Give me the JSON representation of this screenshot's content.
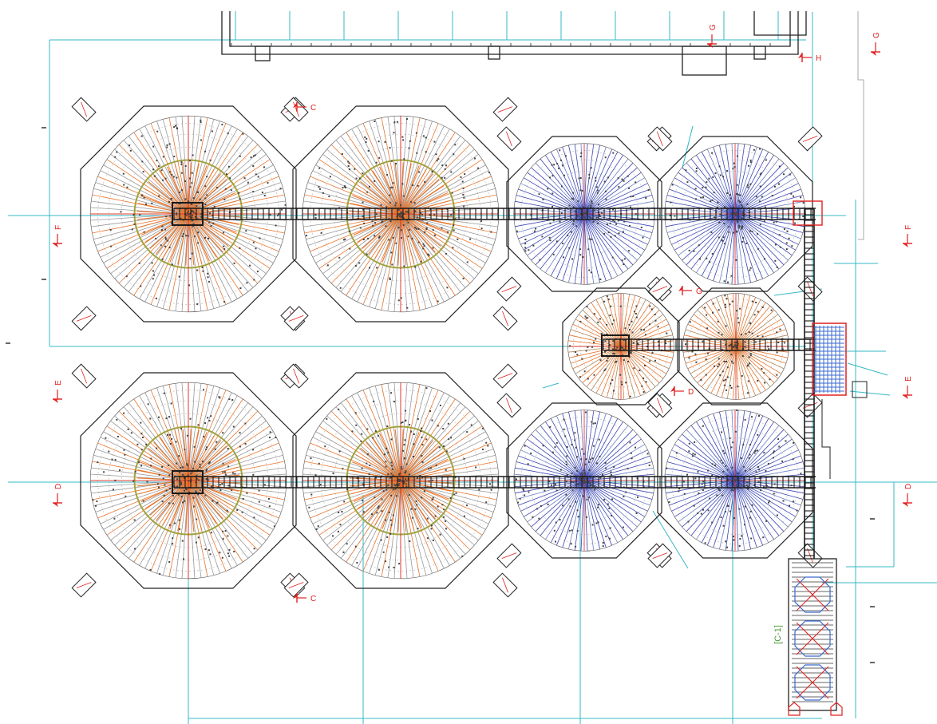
{
  "colors": {
    "dimension": "#35b8c6",
    "outline": "#222222",
    "grey_radial": "#9a9a9a",
    "orange_radial": "#e8772e",
    "blue_radial": "#3a45b5",
    "ring": "#a2a23c",
    "red": "#e02020",
    "beam": "#1a1a1a",
    "duct": "#3a6ad0",
    "green_label": "#4a9a3a"
  },
  "section_markers": [
    {
      "id": "sec-c-top",
      "letter": "C"
    },
    {
      "id": "sec-c-bottom",
      "letter": "C"
    },
    {
      "id": "sec-f-left",
      "letter": "F"
    },
    {
      "id": "sec-e-left",
      "letter": "E"
    },
    {
      "id": "sec-d-left",
      "letter": "D"
    },
    {
      "id": "sec-f-right",
      "letter": "F"
    },
    {
      "id": "sec-e-right",
      "letter": "E"
    },
    {
      "id": "sec-d-right",
      "letter": "D"
    },
    {
      "id": "sec-g-top",
      "letter": "G"
    },
    {
      "id": "sec-g-right",
      "letter": "G"
    },
    {
      "id": "sec-h-top",
      "letter": "H"
    },
    {
      "id": "sec-g-mid",
      "letter": "G"
    },
    {
      "id": "sec-d-mid",
      "letter": "D"
    }
  ],
  "tanks": [
    {
      "id": "tank-large-1",
      "scheme": "grey-orange"
    },
    {
      "id": "tank-large-2",
      "scheme": "grey-orange"
    },
    {
      "id": "tank-medium-1",
      "scheme": "blue"
    },
    {
      "id": "tank-medium-2",
      "scheme": "blue"
    },
    {
      "id": "tank-small-1",
      "scheme": "orange"
    },
    {
      "id": "tank-small-2",
      "scheme": "orange"
    },
    {
      "id": "tank-large-3",
      "scheme": "grey-orange"
    },
    {
      "id": "tank-large-4",
      "scheme": "grey-orange"
    },
    {
      "id": "tank-medium-3",
      "scheme": "blue"
    },
    {
      "id": "tank-medium-4",
      "scheme": "blue"
    }
  ],
  "equipment_label": "[C-1]"
}
